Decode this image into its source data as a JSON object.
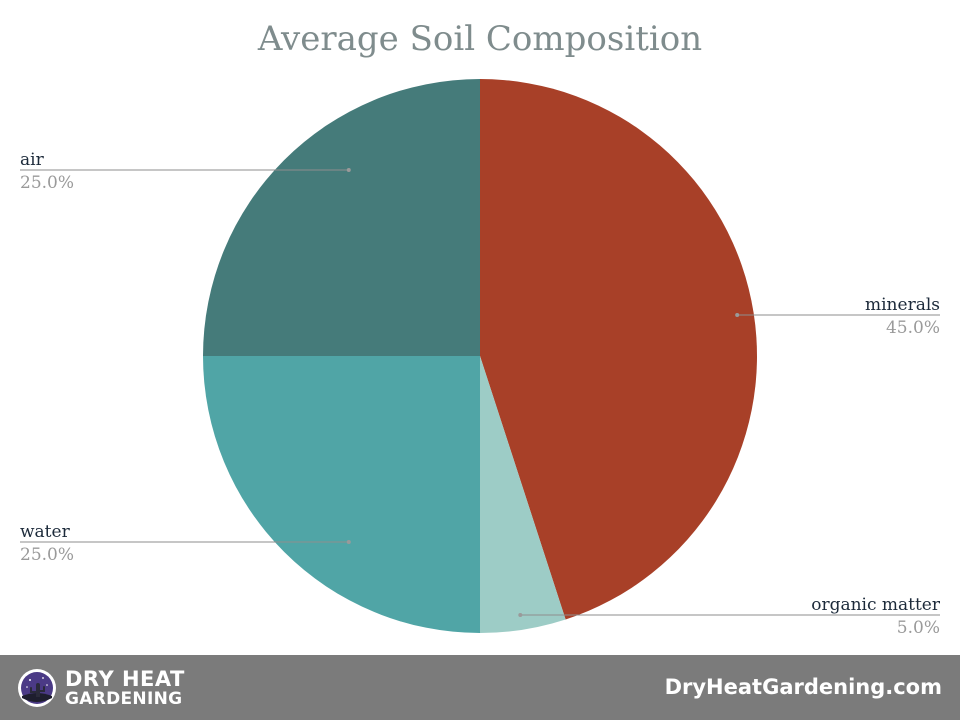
{
  "chart_data": {
    "type": "pie",
    "title": "Average Soil Composition",
    "start_angle_deg": 0,
    "direction": "clockwise",
    "slices": [
      {
        "name": "minerals",
        "value": 45.0,
        "label": "45.0%",
        "color": "#a84028"
      },
      {
        "name": "organic matter",
        "value": 5.0,
        "label": "5.0%",
        "color": "#9dccc6"
      },
      {
        "name": "water",
        "value": 25.0,
        "label": "25.0%",
        "color": "#50a5a6"
      },
      {
        "name": "air",
        "value": 25.0,
        "label": "25.0%",
        "color": "#457b7a"
      }
    ]
  },
  "footer": {
    "brand_line1": "DRY HEAT",
    "brand_line2": "GARDENING",
    "logo_icon": "night-cactus-logo-icon",
    "site_url": "DryHeatGardening.com",
    "background": "#7b7b7b"
  }
}
